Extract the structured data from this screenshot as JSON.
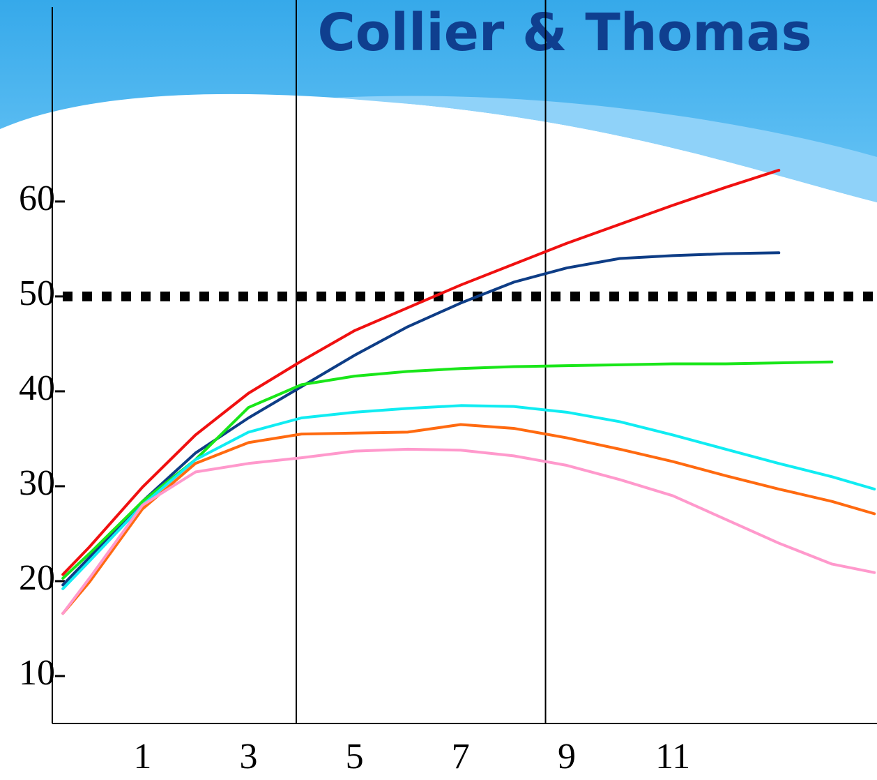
{
  "chart_data": {
    "type": "line",
    "title": "Collier & Thomas",
    "x": [
      -0.5,
      0,
      1,
      2,
      3,
      4,
      5,
      6,
      7,
      8,
      9,
      10,
      11,
      12,
      13,
      14,
      14.8
    ],
    "xlim": [
      -0.7,
      14.85
    ],
    "xticks": [
      1,
      3,
      5,
      7,
      9,
      11
    ],
    "ylim": [
      5,
      80.5
    ],
    "yticks": [
      10,
      20,
      30,
      40,
      50,
      60
    ],
    "reference_line": 50,
    "vlines": [
      3.9,
      8.6
    ],
    "series": [
      {
        "color": "#f01010",
        "values": [
          20.7,
          23.6,
          29.9,
          35.4,
          39.8,
          43.2,
          46.4,
          48.8,
          51.2,
          53.4,
          55.6,
          57.6,
          59.6,
          61.5,
          63.3,
          null,
          null
        ]
      },
      {
        "color": "#0e3d86",
        "values": [
          19.6,
          22.5,
          28.4,
          33.5,
          37.2,
          40.5,
          43.8,
          46.8,
          49.3,
          51.5,
          53.0,
          54.0,
          54.3,
          54.5,
          54.6,
          null,
          null
        ]
      },
      {
        "color": "#19e619",
        "values": [
          20.3,
          22.9,
          28.4,
          32.8,
          38.3,
          40.7,
          41.6,
          42.1,
          42.4,
          42.6,
          42.7,
          42.8,
          42.9,
          42.9,
          43.0,
          43.1,
          null
        ]
      },
      {
        "color": "#10ecf2",
        "values": [
          19.2,
          22.1,
          28.0,
          32.8,
          35.7,
          37.2,
          37.8,
          38.2,
          38.5,
          38.4,
          37.8,
          36.8,
          35.4,
          33.9,
          32.4,
          31.0,
          29.7
        ]
      },
      {
        "color": "#ff6a10",
        "values": [
          16.6,
          19.9,
          27.6,
          32.4,
          34.6,
          35.5,
          35.6,
          35.7,
          36.5,
          36.1,
          35.1,
          33.9,
          32.6,
          31.1,
          29.7,
          28.4,
          27.1
        ]
      },
      {
        "color": "#ff99cc",
        "values": [
          16.6,
          20.3,
          28.0,
          31.5,
          32.4,
          33.0,
          33.7,
          33.9,
          33.8,
          33.2,
          32.2,
          30.7,
          29.0,
          26.5,
          24.0,
          21.8,
          20.9
        ]
      }
    ]
  }
}
